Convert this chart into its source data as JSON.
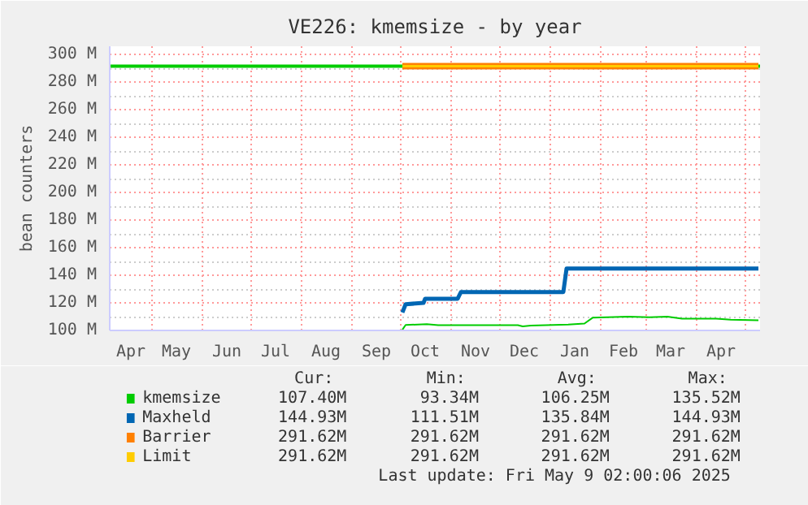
{
  "chart_data": {
    "type": "line",
    "title": "VE226: kmemsize - by year",
    "ylabel": "bean counters",
    "xlim": [
      "2024-04-05",
      "2025-05-10"
    ],
    "ylim": [
      100,
      306
    ],
    "xticks": [
      {
        "value": "2024-05-01",
        "label": null
      },
      {
        "value": "2024-06-01",
        "label": null
      },
      {
        "value": "2024-07-01",
        "label": null
      },
      {
        "value": "2024-08-01",
        "label": null
      },
      {
        "value": "2024-09-01",
        "label": null
      },
      {
        "value": "2024-10-01",
        "label": null
      },
      {
        "value": "2024-11-01",
        "label": null
      },
      {
        "value": "2024-12-01",
        "label": null
      },
      {
        "value": "2025-01-01",
        "label": null
      },
      {
        "value": "2025-02-01",
        "label": null
      },
      {
        "value": "2025-03-01",
        "label": null
      },
      {
        "value": "2025-04-01",
        "label": null
      },
      {
        "value": "2025-05-01",
        "label": null
      },
      {
        "value": "2024-04-18",
        "label": "Apr"
      },
      {
        "value": "2024-05-16",
        "label": "May"
      },
      {
        "value": "2024-06-16",
        "label": "Jun"
      },
      {
        "value": "2024-07-16",
        "label": "Jul"
      },
      {
        "value": "2024-08-16",
        "label": "Aug"
      },
      {
        "value": "2024-09-16",
        "label": "Sep"
      },
      {
        "value": "2024-10-16",
        "label": "Oct"
      },
      {
        "value": "2024-11-16",
        "label": "Nov"
      },
      {
        "value": "2024-12-16",
        "label": "Dec"
      },
      {
        "value": "2025-01-16",
        "label": "Jan"
      },
      {
        "value": "2025-02-15",
        "label": "Feb"
      },
      {
        "value": "2025-03-16",
        "label": "Mar"
      },
      {
        "value": "2025-04-16",
        "label": "Apr"
      }
    ],
    "yticks": [
      {
        "value": 100,
        "label": "100 M"
      },
      {
        "value": 110,
        "label": null
      },
      {
        "value": 120,
        "label": "120 M"
      },
      {
        "value": 130,
        "label": null
      },
      {
        "value": 140,
        "label": "140 M"
      },
      {
        "value": 150,
        "label": null
      },
      {
        "value": 160,
        "label": "160 M"
      },
      {
        "value": 170,
        "label": null
      },
      {
        "value": 180,
        "label": "180 M"
      },
      {
        "value": 190,
        "label": null
      },
      {
        "value": 200,
        "label": "200 M"
      },
      {
        "value": 210,
        "label": null
      },
      {
        "value": 220,
        "label": "220 M"
      },
      {
        "value": 230,
        "label": null
      },
      {
        "value": 240,
        "label": "240 M"
      },
      {
        "value": 250,
        "label": null
      },
      {
        "value": 260,
        "label": "260 M"
      },
      {
        "value": 270,
        "label": null
      },
      {
        "value": 280,
        "label": "280 M"
      },
      {
        "value": 290,
        "label": null
      },
      {
        "value": 300,
        "label": "300 M"
      }
    ],
    "grid": true,
    "legend": "bottom",
    "marker": "none",
    "line_style": "solid",
    "ref_lines": [
      {
        "axis": "y",
        "value": 291.62,
        "color": "#00cc00"
      }
    ],
    "series": [
      {
        "name": "kmemsize",
        "color": "#00cc00",
        "x": [
          "2024-10-02",
          "2024-10-04",
          "2024-10-17",
          "2024-10-24",
          "2024-12-12",
          "2024-12-15",
          "2024-12-20",
          "2025-01-12",
          "2025-01-22",
          "2025-01-27",
          "2025-02-18",
          "2025-03-03",
          "2025-03-14",
          "2025-03-23",
          "2025-04-13",
          "2025-04-22",
          "2025-05-09"
        ],
        "values": [
          100.5,
          104,
          104.5,
          103.8,
          103.8,
          102.9,
          103.5,
          104.2,
          105,
          109.2,
          110,
          109.5,
          110,
          108.5,
          108.5,
          107.8,
          107.4
        ]
      },
      {
        "name": "Maxheld",
        "color": "#0066b3",
        "x": [
          "2024-10-02",
          "2024-10-04",
          "2024-10-15",
          "2024-10-16",
          "2024-11-05",
          "2024-11-07",
          "2025-01-09",
          "2025-01-11",
          "2025-05-09"
        ],
        "values": [
          113,
          119,
          120,
          123,
          123,
          127.8,
          127.8,
          144.93,
          144.93
        ]
      },
      {
        "name": "Barrier",
        "color": "#ff8000",
        "x": [
          "2024-10-02",
          "2025-05-09"
        ],
        "values": [
          291.62,
          291.62
        ]
      },
      {
        "name": "Limit",
        "color": "#ffcc00",
        "x": [
          "2024-10-02",
          "2025-05-09"
        ],
        "values": [
          291.62,
          291.62
        ]
      }
    ],
    "annotations": [
      "Cur:",
      "Min:",
      "Avg:",
      "Max:",
      "107.40M",
      "93.34M",
      "106.25M",
      "135.52M",
      "144.93M",
      "111.51M",
      "135.84M",
      "144.93M",
      "291.62M",
      "291.62M",
      "291.62M",
      "291.62M",
      "291.62M",
      "291.62M",
      "291.62M",
      "291.62M",
      "Last update: Fri May  9 02:00:06 2025"
    ]
  }
}
